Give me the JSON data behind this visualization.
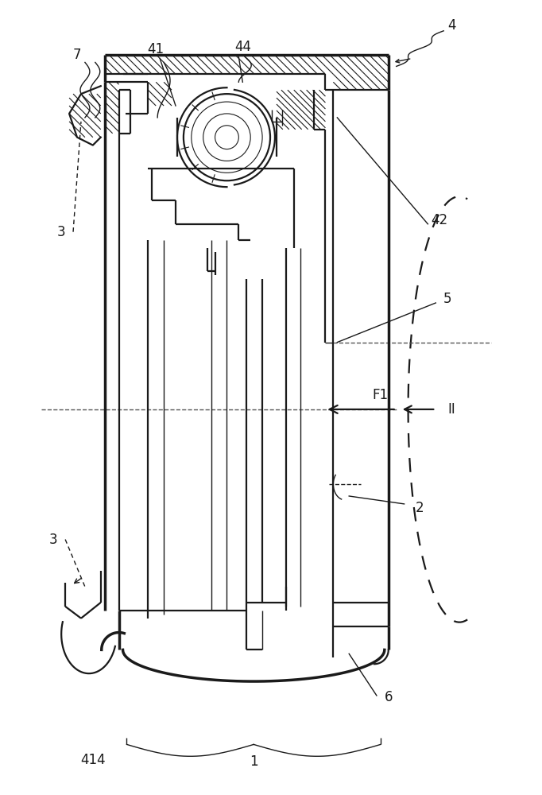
{
  "bg_color": "#ffffff",
  "line_color": "#1a1a1a",
  "figure_width": 6.82,
  "figure_height": 10.0,
  "dpi": 100
}
